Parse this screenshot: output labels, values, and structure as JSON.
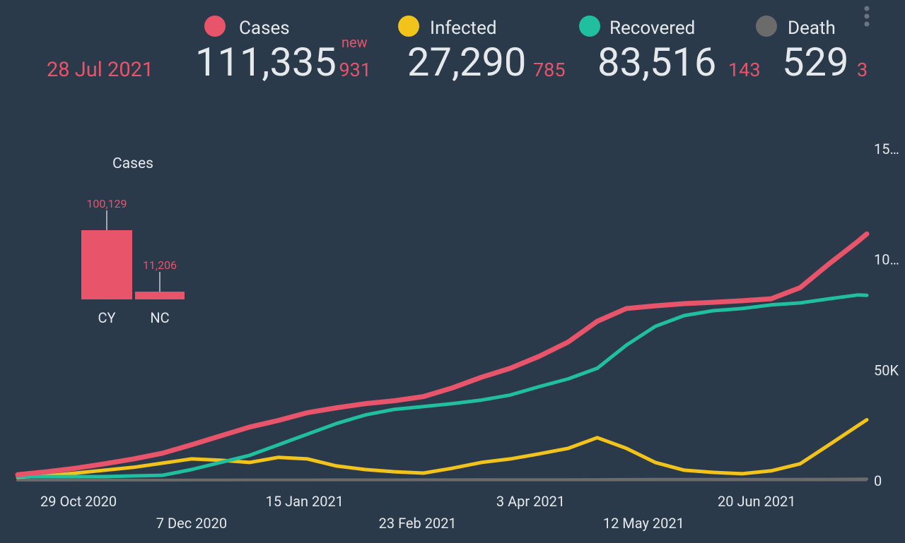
{
  "header": {
    "date": "28 Jul 2021",
    "new_label": "new",
    "stats": [
      {
        "name": "Cases",
        "color": "#e8546a",
        "value": "111,335",
        "new": "931"
      },
      {
        "name": "Infected",
        "color": "#f2c31b",
        "value": "27,290",
        "new": "785"
      },
      {
        "name": "Recovered",
        "color": "#1fbf9f",
        "value": "83,516",
        "new": "143"
      },
      {
        "name": "Death",
        "color": "#6b6b6b",
        "value": "529",
        "new": "3"
      }
    ]
  },
  "chart_data": [
    {
      "type": "bar",
      "title": "Cases",
      "categories": [
        "CY",
        "NC"
      ],
      "values": [
        100129,
        11206
      ],
      "value_labels": [
        "100,129",
        "11,206"
      ],
      "color": "#e8546a"
    },
    {
      "type": "line",
      "x": [
        "2020-10-08",
        "2020-10-18",
        "2020-10-28",
        "2020-11-07",
        "2020-11-17",
        "2020-11-27",
        "2020-12-07",
        "2020-12-17",
        "2020-12-27",
        "2021-01-06",
        "2021-01-16",
        "2021-01-26",
        "2021-02-05",
        "2021-02-15",
        "2021-02-25",
        "2021-03-07",
        "2021-03-17",
        "2021-03-27",
        "2021-04-06",
        "2021-04-16",
        "2021-04-26",
        "2021-05-06",
        "2021-05-16",
        "2021-05-26",
        "2021-06-05",
        "2021-06-15",
        "2021-06-25",
        "2021-07-05",
        "2021-07-15",
        "2021-07-25",
        "2021-07-28"
      ],
      "xlim": [
        "2020-10-08",
        "2021-07-28"
      ],
      "xticks": [
        {
          "value": "2020-10-29",
          "label": "29 Oct 2020"
        },
        {
          "value": "2020-12-07",
          "label": "7 Dec 2020"
        },
        {
          "value": "2021-01-15",
          "label": "15 Jan 2021"
        },
        {
          "value": "2021-02-23",
          "label": "23 Feb 2021"
        },
        {
          "value": "2021-04-03",
          "label": "3 Apr 2021"
        },
        {
          "value": "2021-05-12",
          "label": "12 May 2021"
        },
        {
          "value": "2021-06-20",
          "label": "20 Jun 2021"
        }
      ],
      "ylim": [
        0,
        150000
      ],
      "yticks": [
        0,
        {
          "value": 50000,
          "label": "50K"
        },
        {
          "value": 100000,
          "label": "10…"
        },
        {
          "value": 150000,
          "label": "15…"
        }
      ],
      "series": [
        {
          "name": "Death",
          "color": "#6b6b6b",
          "values": [
            22,
            24,
            27,
            30,
            34,
            45,
            65,
            90,
            115,
            130,
            140,
            150,
            160,
            170,
            180,
            195,
            210,
            225,
            245,
            270,
            300,
            345,
            370,
            380,
            385,
            390,
            400,
            415,
            440,
            500,
            529
          ]
        },
        {
          "name": "Infected",
          "color": "#f2c31b",
          "values": [
            1300,
            1900,
            3200,
            4500,
            5800,
            7700,
            9600,
            9000,
            8000,
            10300,
            9600,
            6400,
            4800,
            3800,
            3200,
            5400,
            8000,
            9600,
            11900,
            14400,
            19200,
            14400,
            8000,
            4500,
            3500,
            2900,
            4200,
            7400,
            16000,
            24700,
            27290
          ]
        },
        {
          "name": "Recovered",
          "color": "#1fbf9f",
          "values": [
            1600,
            1600,
            1600,
            1600,
            1900,
            2200,
            4800,
            8000,
            11200,
            16000,
            20800,
            25600,
            29500,
            32000,
            33300,
            34600,
            36200,
            38500,
            42300,
            45800,
            50600,
            61000,
            69500,
            74400,
            76600,
            77600,
            79200,
            80100,
            82000,
            83700,
            83516
          ]
        },
        {
          "name": "Cases",
          "color": "#e8546a",
          "values": [
            2500,
            3800,
            5400,
            7400,
            9600,
            12200,
            16000,
            20000,
            24000,
            27000,
            30500,
            32700,
            34600,
            35900,
            37800,
            41700,
            46500,
            50600,
            56000,
            62500,
            71800,
            77600,
            78800,
            79800,
            80400,
            81100,
            82000,
            87000,
            97800,
            108000,
            111335
          ]
        }
      ]
    }
  ]
}
